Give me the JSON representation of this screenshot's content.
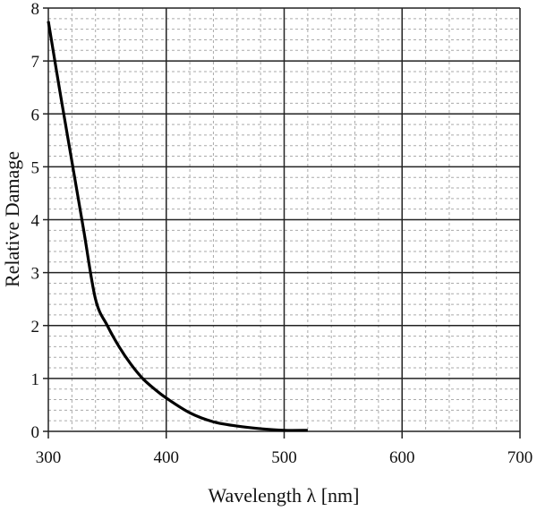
{
  "chart_data": {
    "type": "line",
    "title": "",
    "xlabel": "Wavelength λ [nm]",
    "ylabel": "Relative Damage",
    "xlim": [
      300,
      700
    ],
    "ylim": [
      0,
      8
    ],
    "xticks": [
      "300",
      "400",
      "500",
      "600",
      "700"
    ],
    "yticks": [
      "0",
      "1",
      "2",
      "3",
      "4",
      "5",
      "6",
      "7",
      "8"
    ],
    "grid": {
      "major": true,
      "minor": true,
      "minor_x_step": 20,
      "minor_y_step": 0.2
    },
    "series": [
      {
        "name": "Relative Damage",
        "color": "#000000",
        "x": [
          300,
          310,
          320,
          330,
          340,
          350,
          360,
          370,
          380,
          390,
          400,
          420,
          440,
          460,
          480,
          500,
          520
        ],
        "y": [
          7.75,
          6.4,
          5.1,
          3.8,
          2.5,
          2.0,
          1.6,
          1.27,
          1.0,
          0.8,
          0.63,
          0.35,
          0.18,
          0.1,
          0.05,
          0.02,
          0.02
        ]
      }
    ]
  }
}
